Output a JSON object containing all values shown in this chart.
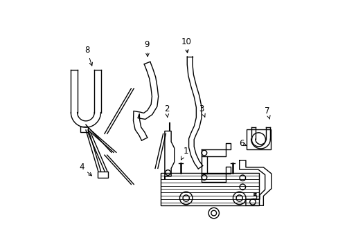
{
  "bg_color": "#ffffff",
  "line_color": "#000000",
  "lw": 1.0,
  "fig_width": 4.89,
  "fig_height": 3.6,
  "dpi": 100
}
